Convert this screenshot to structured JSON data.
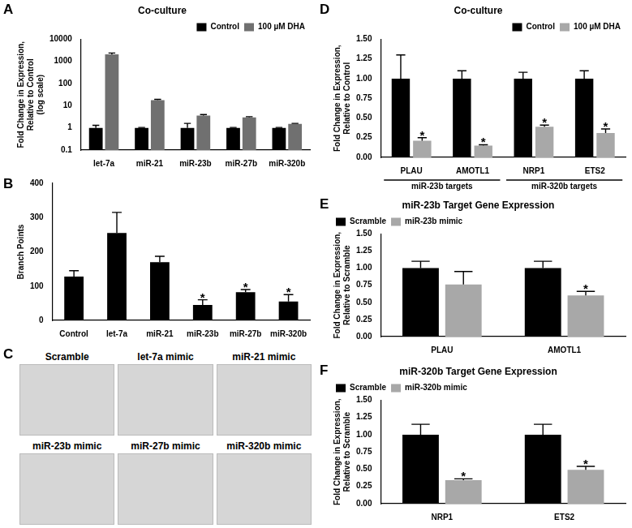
{
  "chart_data": [
    {
      "panel": "A",
      "type": "bar",
      "title": "Co-culture",
      "y_label": [
        "Fold Change in Expression,",
        "Relative to Control",
        "(log scale)"
      ],
      "categories": [
        "let-7a",
        "miR-21",
        "miR-23b",
        "miR-27b",
        "miR-320b"
      ],
      "series": [
        {
          "name": "Control",
          "color": "#000000",
          "values": [
            1,
            1,
            1,
            1,
            1
          ],
          "errors": [
            0.3,
            0.05,
            0.6,
            0.05,
            0.05
          ]
        },
        {
          "name": "100 µM DHA",
          "color": "#707070",
          "values": [
            2100,
            18,
            3.6,
            3.0,
            1.5
          ],
          "errors": [
            300,
            1.5,
            0.4,
            0.2,
            0.1
          ]
        }
      ],
      "log": "y",
      "ylim": [
        0.1,
        10000
      ],
      "yticks": [
        0.1,
        1,
        10,
        100,
        1000,
        10000
      ],
      "grid": false,
      "legend": "upper right"
    },
    {
      "panel": "B",
      "type": "bar",
      "y_label": [
        "Branch Points"
      ],
      "categories": [
        "Control",
        "let-7a",
        "miR-21",
        "miR-23b",
        "miR-27b",
        "miR-320b"
      ],
      "values": [
        128,
        255,
        170,
        45,
        82,
        55
      ],
      "errors": [
        17,
        60,
        17,
        15,
        8,
        20
      ],
      "color": "#000000",
      "annotations": [
        {
          "text": "*",
          "category": "miR-23b"
        },
        {
          "text": "*",
          "category": "miR-27b"
        },
        {
          "text": "*",
          "category": "miR-320b"
        }
      ],
      "ylim": [
        0,
        400
      ],
      "yticks": [
        0,
        100,
        200,
        300,
        400
      ],
      "grid": false
    },
    {
      "panel": "D",
      "type": "bar",
      "title": "Co-culture",
      "y_label": [
        "Fold Change in Expression,",
        "Relative to Control"
      ],
      "categories": [
        "PLAU",
        "AMOTL1",
        "NRP1",
        "ETS2"
      ],
      "series": [
        {
          "name": "Control",
          "color": "#000000",
          "values": [
            1,
            1,
            1,
            1
          ],
          "errors": [
            0.3,
            0.1,
            0.08,
            0.1
          ]
        },
        {
          "name": "100 µM DHA",
          "color": "#a8a8a8",
          "values": [
            0.21,
            0.15,
            0.39,
            0.31
          ],
          "errors": [
            0.04,
            0.01,
            0.02,
            0.05
          ]
        }
      ],
      "annotations": [
        {
          "text": "*",
          "series": "100 µM DHA",
          "category": "PLAU"
        },
        {
          "text": "*",
          "series": "100 µM DHA",
          "category": "AMOTL1"
        },
        {
          "text": "*",
          "series": "100 µM DHA",
          "category": "NRP1"
        },
        {
          "text": "*",
          "series": "100 µM DHA",
          "category": "ETS2"
        }
      ],
      "groups": [
        {
          "label": "miR-23b targets",
          "categories": [
            "PLAU",
            "AMOTL1"
          ]
        },
        {
          "label": "miR-320b targets",
          "categories": [
            "NRP1",
            "ETS2"
          ]
        }
      ],
      "ylim": [
        0,
        1.5
      ],
      "yticks": [
        {
          "value": 0,
          "label": "0.00"
        },
        {
          "value": 0.25,
          "label": "0.25"
        },
        {
          "value": 0.5,
          "label": "0.50"
        },
        {
          "value": 0.75,
          "label": "0.75"
        },
        {
          "value": 1,
          "label": "1.00"
        },
        {
          "value": 1.25,
          "label": "1.25"
        },
        {
          "value": 1.5,
          "label": "1.50"
        }
      ],
      "grid": false,
      "legend": "upper right"
    },
    {
      "panel": "E",
      "type": "bar",
      "title": "miR-23b Target Gene Expression",
      "y_label": [
        "Fold Change in Expression,",
        "Relative to Scramble"
      ],
      "categories": [
        "PLAU",
        "AMOTL1"
      ],
      "series": [
        {
          "name": "Scramble",
          "color": "#000000",
          "values": [
            1,
            1
          ],
          "errors": [
            0.1,
            0.1
          ]
        },
        {
          "name": "miR-23b mimic",
          "color": "#a8a8a8",
          "values": [
            0.76,
            0.6
          ],
          "errors": [
            0.19,
            0.06
          ]
        }
      ],
      "annotations": [
        {
          "text": "*",
          "series": "miR-23b mimic",
          "category": "AMOTL1"
        }
      ],
      "ylim": [
        0,
        1.5
      ],
      "yticks": [
        {
          "value": 0,
          "label": "0.00"
        },
        {
          "value": 0.25,
          "label": "0.25"
        },
        {
          "value": 0.5,
          "label": "0.50"
        },
        {
          "value": 0.75,
          "label": "0.75"
        },
        {
          "value": 1,
          "label": "1.00"
        },
        {
          "value": 1.25,
          "label": "1.25"
        },
        {
          "value": 1.5,
          "label": "1.50"
        }
      ],
      "grid": false,
      "legend": "upper left"
    },
    {
      "panel": "F",
      "type": "bar",
      "title": "miR-320b Target Gene Expression",
      "y_label": [
        "Fold Change in Expression,",
        "Relative to Scramble"
      ],
      "categories": [
        "NRP1",
        "ETS2"
      ],
      "series": [
        {
          "name": "Scramble",
          "color": "#000000",
          "values": [
            1,
            1
          ],
          "errors": [
            0.15,
            0.15
          ]
        },
        {
          "name": "miR-320b mimic",
          "color": "#a8a8a8",
          "values": [
            0.34,
            0.49
          ],
          "errors": [
            0.02,
            0.05
          ]
        }
      ],
      "annotations": [
        {
          "text": "*",
          "series": "miR-320b mimic",
          "category": "NRP1"
        },
        {
          "text": "*",
          "series": "miR-320b mimic",
          "category": "ETS2"
        }
      ],
      "ylim": [
        0,
        1.5
      ],
      "yticks": [
        {
          "value": 0,
          "label": "0.00"
        },
        {
          "value": 0.25,
          "label": "0.25"
        },
        {
          "value": 0.5,
          "label": "0.50"
        },
        {
          "value": 0.75,
          "label": "0.75"
        },
        {
          "value": 1,
          "label": "1.00"
        },
        {
          "value": 1.25,
          "label": "1.25"
        },
        {
          "value": 1.5,
          "label": "1.50"
        }
      ],
      "grid": false,
      "legend": "upper left"
    }
  ],
  "image_panel": {
    "panel": "C",
    "captions": [
      "Scramble",
      "let-7a mimic",
      "miR-21 mimic",
      "miR-23b mimic",
      "miR-27b mimic",
      "miR-320b mimic"
    ]
  }
}
